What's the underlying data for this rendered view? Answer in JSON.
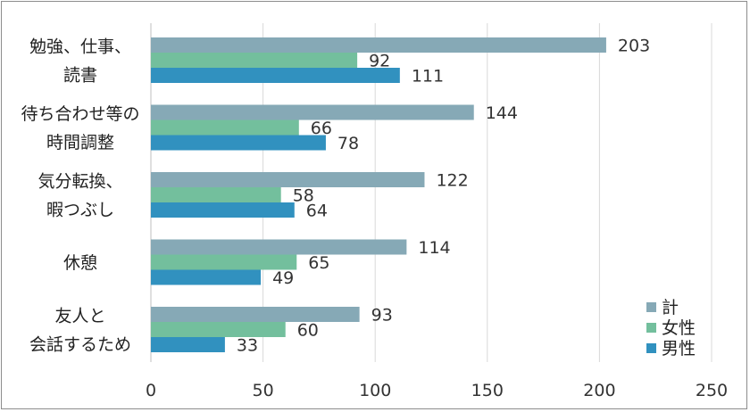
{
  "chart_data": {
    "type": "bar",
    "orientation": "horizontal",
    "categories": [
      [
        "勉強、仕事、",
        "読書"
      ],
      [
        "待ち合わせ等の",
        "時間調整"
      ],
      [
        "気分転換、",
        "暇つぶし"
      ],
      [
        "休憩"
      ],
      [
        "友人と",
        "会話するため"
      ]
    ],
    "series": [
      {
        "name": "計",
        "color": "#86a9b6",
        "values": [
          203,
          144,
          122,
          114,
          93
        ]
      },
      {
        "name": "女性",
        "color": "#73bf9d",
        "values": [
          92,
          66,
          58,
          65,
          60
        ]
      },
      {
        "name": "男性",
        "color": "#3191bf",
        "values": [
          111,
          78,
          64,
          49,
          33
        ]
      }
    ],
    "xlim": [
      0,
      250
    ],
    "xticks": [
      0,
      50,
      100,
      150,
      200,
      250
    ],
    "grid": "vertical",
    "legend_position": "bottom-right",
    "title": "",
    "xlabel": "",
    "ylabel": ""
  }
}
